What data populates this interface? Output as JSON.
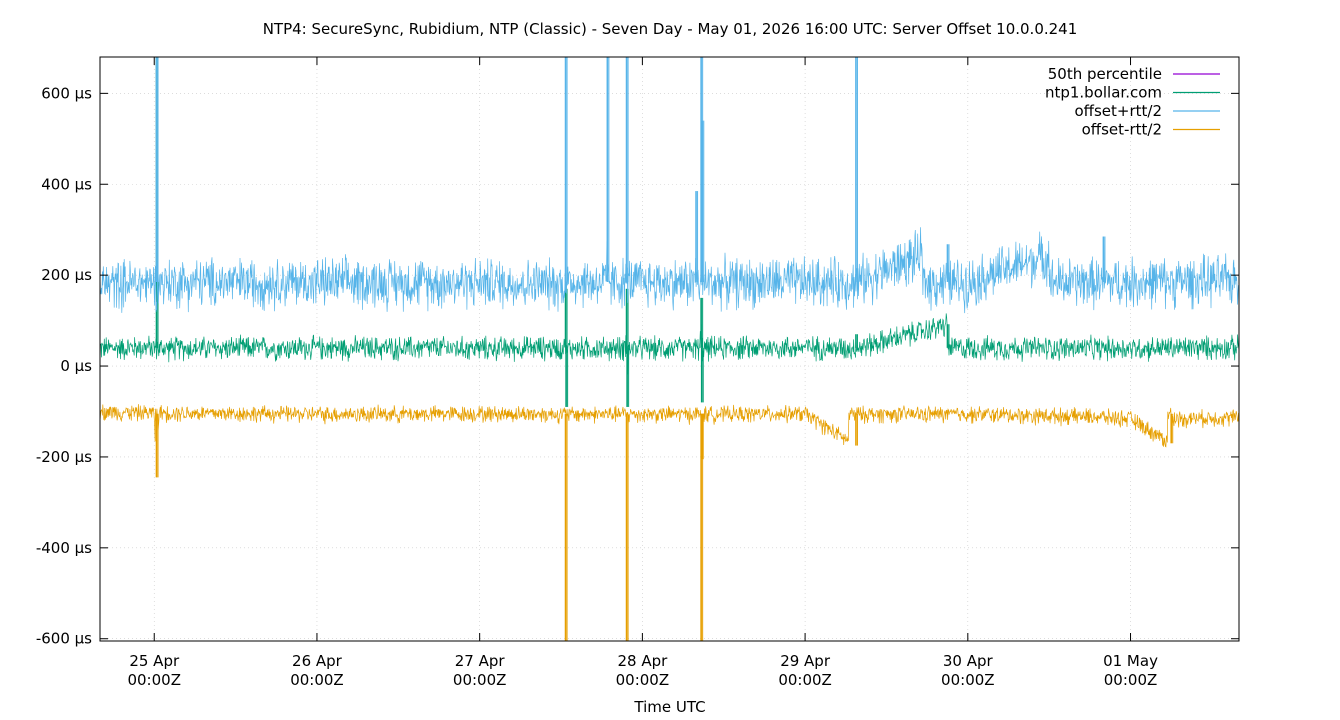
{
  "chart_data": {
    "type": "line",
    "title": "NTP4: SecureSync, Rubidium, NTP (Classic) - Seven Day - May 01, 2026 16:00 UTC: Server Offset 10.0.0.241",
    "xlabel": "Time UTC",
    "ylabel": "",
    "xlim": [
      "2026-04-24T16:00Z",
      "2026-05-01T16:00Z"
    ],
    "ylim": [
      -605,
      680
    ],
    "y_unit": "µs",
    "grid": true,
    "legend_position": "top-right",
    "x_ticks": [
      {
        "date": "2026-04-25T00:00Z",
        "line1": "25 Apr",
        "line2": "00:00Z"
      },
      {
        "date": "2026-04-26T00:00Z",
        "line1": "26 Apr",
        "line2": "00:00Z"
      },
      {
        "date": "2026-04-27T00:00Z",
        "line1": "27 Apr",
        "line2": "00:00Z"
      },
      {
        "date": "2026-04-28T00:00Z",
        "line1": "28 Apr",
        "line2": "00:00Z"
      },
      {
        "date": "2026-04-29T00:00Z",
        "line1": "29 Apr",
        "line2": "00:00Z"
      },
      {
        "date": "2026-04-30T00:00Z",
        "line1": "30 Apr",
        "line2": "00:00Z"
      },
      {
        "date": "2026-05-01T00:00Z",
        "line1": "01 May",
        "line2": "00:00Z"
      }
    ],
    "y_ticks": [
      {
        "value": 600,
        "label": "600 µs"
      },
      {
        "value": 400,
        "label": "400 µs"
      },
      {
        "value": 200,
        "label": "200 µs"
      },
      {
        "value": 0,
        "label": "0 µs"
      },
      {
        "value": -200,
        "label": "-200 µs"
      },
      {
        "value": -400,
        "label": "-400 µs"
      },
      {
        "value": -600,
        "label": "-600 µs"
      }
    ],
    "series": [
      {
        "name": "50th percentile",
        "color": "#9400d3",
        "note_values": "not visible in plot area"
      },
      {
        "name": "ntp1.bollar.com",
        "color": "#009e73",
        "baseline": 40,
        "noise_band": [
          5,
          70
        ],
        "points": [
          {
            "x": "2026-04-24T16:00Z",
            "y": 40
          },
          {
            "x": "2026-04-25T00:00Z",
            "y": 42
          },
          {
            "x": "2026-04-25T00:20Z",
            "y": 680
          },
          {
            "x": "2026-04-25T00:40Z",
            "y": 40
          },
          {
            "x": "2026-04-26T00:00Z",
            "y": 41
          },
          {
            "x": "2026-04-27T00:00Z",
            "y": 40
          },
          {
            "x": "2026-04-27T12:30Z",
            "y": 41
          },
          {
            "x": "2026-04-27T12:40Z",
            "y": 170
          },
          {
            "x": "2026-04-27T12:45Z",
            "y": -90
          },
          {
            "x": "2026-04-27T12:55Z",
            "y": 40
          },
          {
            "x": "2026-04-27T21:30Z",
            "y": 40
          },
          {
            "x": "2026-04-27T21:40Z",
            "y": 170
          },
          {
            "x": "2026-04-27T21:45Z",
            "y": -90
          },
          {
            "x": "2026-04-27T21:55Z",
            "y": 40
          },
          {
            "x": "2026-04-28T08:30Z",
            "y": 40
          },
          {
            "x": "2026-04-28T08:40Z",
            "y": 150
          },
          {
            "x": "2026-04-28T08:45Z",
            "y": -80
          },
          {
            "x": "2026-04-28T08:55Z",
            "y": 40
          },
          {
            "x": "2026-04-29T00:00Z",
            "y": 42
          },
          {
            "x": "2026-04-29T07:25Z",
            "y": 40
          },
          {
            "x": "2026-04-29T07:30Z",
            "y": 70
          },
          {
            "x": "2026-04-29T07:35Z",
            "y": 40
          },
          {
            "x": "2026-04-29T21:00Z",
            "y": 92
          },
          {
            "x": "2026-04-29T21:05Z",
            "y": 40
          },
          {
            "x": "2026-04-30T00:00Z",
            "y": 41
          },
          {
            "x": "2026-05-01T00:00Z",
            "y": 40
          },
          {
            "x": "2026-05-01T16:00Z",
            "y": 42
          }
        ]
      },
      {
        "name": "offset+rtt/2",
        "color": "#56b4e9",
        "baseline": 185,
        "noise_band": [
          115,
          250
        ],
        "points": [
          {
            "x": "2026-04-24T16:00Z",
            "y": 180
          },
          {
            "x": "2026-04-25T00:00Z",
            "y": 185
          },
          {
            "x": "2026-04-25T00:20Z",
            "y": 680
          },
          {
            "x": "2026-04-25T00:40Z",
            "y": 185
          },
          {
            "x": "2026-04-26T00:00Z",
            "y": 185
          },
          {
            "x": "2026-04-27T00:00Z",
            "y": 185
          },
          {
            "x": "2026-04-27T12:30Z",
            "y": 180
          },
          {
            "x": "2026-04-27T12:40Z",
            "y": 680
          },
          {
            "x": "2026-04-27T12:55Z",
            "y": 185
          },
          {
            "x": "2026-04-27T18:45Z",
            "y": 185
          },
          {
            "x": "2026-04-27T18:50Z",
            "y": 680
          },
          {
            "x": "2026-04-27T18:55Z",
            "y": 185
          },
          {
            "x": "2026-04-27T21:30Z",
            "y": 185
          },
          {
            "x": "2026-04-27T21:40Z",
            "y": 680
          },
          {
            "x": "2026-04-27T21:55Z",
            "y": 185
          },
          {
            "x": "2026-04-28T07:50Z",
            "y": 185
          },
          {
            "x": "2026-04-28T07:55Z",
            "y": 385
          },
          {
            "x": "2026-04-28T08:00Z",
            "y": 185
          },
          {
            "x": "2026-04-28T08:30Z",
            "y": 185
          },
          {
            "x": "2026-04-28T08:40Z",
            "y": 680
          },
          {
            "x": "2026-04-28T08:50Z",
            "y": 540
          },
          {
            "x": "2026-04-28T08:55Z",
            "y": 185
          },
          {
            "x": "2026-04-29T00:00Z",
            "y": 185
          },
          {
            "x": "2026-04-29T07:25Z",
            "y": 185
          },
          {
            "x": "2026-04-29T07:30Z",
            "y": 680
          },
          {
            "x": "2026-04-29T07:35Z",
            "y": 185
          },
          {
            "x": "2026-04-29T21:00Z",
            "y": 268
          },
          {
            "x": "2026-04-29T21:05Z",
            "y": 185
          },
          {
            "x": "2026-04-30T00:00Z",
            "y": 185
          },
          {
            "x": "2026-04-30T20:00Z",
            "y": 285
          },
          {
            "x": "2026-04-30T20:05Z",
            "y": 185
          },
          {
            "x": "2026-05-01T00:00Z",
            "y": 185
          },
          {
            "x": "2026-05-01T16:00Z",
            "y": 190
          }
        ]
      },
      {
        "name": "offset-rtt/2",
        "color": "#e69f00",
        "baseline": -105,
        "noise_band": [
          -130,
          -85
        ],
        "points": [
          {
            "x": "2026-04-24T16:00Z",
            "y": -100
          },
          {
            "x": "2026-04-25T00:00Z",
            "y": -102
          },
          {
            "x": "2026-04-25T00:20Z",
            "y": -245
          },
          {
            "x": "2026-04-25T00:40Z",
            "y": -102
          },
          {
            "x": "2026-04-26T00:00Z",
            "y": -105
          },
          {
            "x": "2026-04-27T00:00Z",
            "y": -104
          },
          {
            "x": "2026-04-27T12:30Z",
            "y": -105
          },
          {
            "x": "2026-04-27T12:40Z",
            "y": -605
          },
          {
            "x": "2026-04-27T12:55Z",
            "y": -105
          },
          {
            "x": "2026-04-27T21:30Z",
            "y": -105
          },
          {
            "x": "2026-04-27T21:40Z",
            "y": -605
          },
          {
            "x": "2026-04-27T21:55Z",
            "y": -105
          },
          {
            "x": "2026-04-28T08:30Z",
            "y": -105
          },
          {
            "x": "2026-04-28T08:40Z",
            "y": -605
          },
          {
            "x": "2026-04-28T08:45Z",
            "y": -205
          },
          {
            "x": "2026-04-28T08:55Z",
            "y": -105
          },
          {
            "x": "2026-04-29T00:00Z",
            "y": -104
          },
          {
            "x": "2026-04-29T07:30Z",
            "y": -175
          },
          {
            "x": "2026-04-29T07:35Z",
            "y": -105
          },
          {
            "x": "2026-04-30T00:00Z",
            "y": -105
          },
          {
            "x": "2026-04-30T18:00Z",
            "y": -110
          },
          {
            "x": "2026-05-01T00:00Z",
            "y": -115
          },
          {
            "x": "2026-05-01T06:00Z",
            "y": -170
          },
          {
            "x": "2026-05-01T06:05Z",
            "y": -115
          },
          {
            "x": "2026-05-01T16:00Z",
            "y": -112
          }
        ]
      }
    ]
  }
}
